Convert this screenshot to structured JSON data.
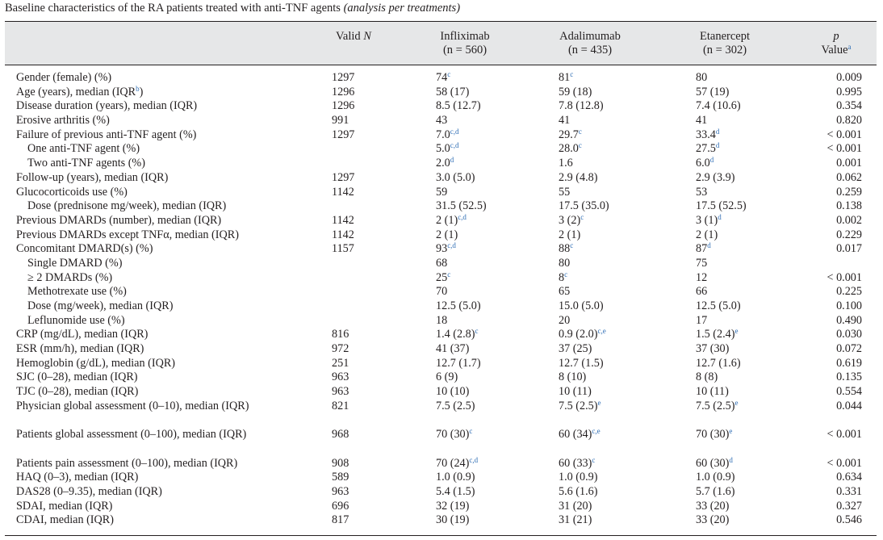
{
  "caption": {
    "text": "Baseline characteristics of the RA patients treated with anti-TNF agents ",
    "italic": "(analysis per treatments)"
  },
  "header": {
    "valid_n_a": "Valid ",
    "valid_n_b": "N",
    "infliximab": "Infliximab",
    "infliximab_n": "(n = 560)",
    "adalimumab": "Adalimumab",
    "adalimumab_n": "(n = 435)",
    "etanercept": "Etanercept",
    "etanercept_n": "(n = 302)",
    "p": "p",
    "p_value": "Value",
    "p_value_sup": "a"
  },
  "rows": [
    {
      "label": "Gender (female) (%)",
      "n": "1297",
      "inf": "74",
      "inf_sup": "c",
      "ada": "81",
      "ada_sup": "c",
      "eta": "80",
      "p": "0.009"
    },
    {
      "label": "Age (years), median (IQR",
      "label_sup": "b",
      "label_end": ")",
      "n": "1296",
      "inf": "58 (17)",
      "ada": "59 (18)",
      "eta": "57 (19)",
      "p": "0.995"
    },
    {
      "label": "Disease duration (years), median (IQR)",
      "n": "1296",
      "inf": "8.5 (12.7)",
      "ada": "7.8 (12.8)",
      "eta": "7.4 (10.6)",
      "p": "0.354"
    },
    {
      "label": "Erosive arthritis (%)",
      "n": "991",
      "inf": "43",
      "ada": "41",
      "eta": "41",
      "p": "0.820"
    },
    {
      "label": "Failure of previous anti-TNF agent (%)",
      "n": "1297",
      "inf": "7.0",
      "inf_sup": "c,d",
      "ada": "29.7",
      "ada_sup": "c",
      "eta": "33.4",
      "eta_sup": "d",
      "p": "< 0.001"
    },
    {
      "label": "One anti-TNF agent (%)",
      "indent": true,
      "inf": "5.0",
      "inf_sup": "c,d",
      "ada": "28.0",
      "ada_sup": "c",
      "eta": "27.5",
      "eta_sup": "d",
      "p": "< 0.001"
    },
    {
      "label": "Two anti-TNF agents (%)",
      "indent": true,
      "inf": "2.0",
      "inf_sup": "d",
      "ada": "1.6",
      "eta": "6.0",
      "eta_sup": "d",
      "p": "0.001"
    },
    {
      "label": "Follow-up (years), median (IQR)",
      "n": "1297",
      "inf": "3.0 (5.0)",
      "ada": "2.9 (4.8)",
      "eta": "2.9 (3.9)",
      "p": "0.062"
    },
    {
      "label": "Glucocorticoids use (%)",
      "n": "1142",
      "inf": "59",
      "ada": "55",
      "eta": "53",
      "p": "0.259"
    },
    {
      "label": "Dose (prednisone mg/week), median (IQR)",
      "indent": true,
      "inf": "31.5 (52.5)",
      "ada": "17.5 (35.0)",
      "eta": "17.5 (52.5)",
      "p": "0.138"
    },
    {
      "label": "Previous DMARDs (number), median (IQR)",
      "n": "1142",
      "inf": "2 (1)",
      "inf_sup": "c,d",
      "ada": "3 (2)",
      "ada_sup": "c",
      "eta": "3 (1)",
      "eta_sup": "d",
      "p": "0.002"
    },
    {
      "label": "Previous DMARDs except TNFα, median (IQR)",
      "n": "1142",
      "inf": "2 (1)",
      "ada": "2 (1)",
      "eta": "2 (1)",
      "p": "0.229"
    },
    {
      "label": "Concomitant DMARD(s) (%)",
      "n": "1157",
      "inf": "93",
      "inf_sup": "c,d",
      "ada": "88",
      "ada_sup": "c",
      "eta": "87",
      "eta_sup": "d",
      "p": "0.017"
    },
    {
      "label": "Single DMARD (%)",
      "indent": true,
      "inf": "68",
      "ada": "80",
      "eta": "75"
    },
    {
      "label": "≥ 2 DMARDs (%)",
      "indent": true,
      "inf": "25",
      "inf_sup": "c",
      "ada": "8",
      "ada_sup": "c",
      "eta": "12",
      "p": "< 0.001"
    },
    {
      "label": "Methotrexate use (%)",
      "indent": true,
      "inf": "70",
      "ada": "65",
      "eta": "66",
      "p": "0.225"
    },
    {
      "label": "Dose (mg/week), median (IQR)",
      "indent": true,
      "inf": "12.5 (5.0)",
      "ada": "15.0 (5.0)",
      "eta": "12.5 (5.0)",
      "p": "0.100"
    },
    {
      "label": "Leflunomide use (%)",
      "indent": true,
      "inf": "18",
      "ada": "20",
      "eta": "17",
      "p": "0.490"
    },
    {
      "label": "CRP (mg/dL), median (IQR)",
      "n": "816",
      "inf": "1.4 (2.8)",
      "inf_sup": "c",
      "ada": "0.9 (2.0)",
      "ada_sup": "c,e",
      "eta": "1.5 (2.4)",
      "eta_sup": "e",
      "p": "0.030"
    },
    {
      "label": "ESR (mm/h), median (IQR)",
      "n": "972",
      "inf": "41 (37)",
      "ada": "37 (25)",
      "eta": "37 (30)",
      "p": "0.072"
    },
    {
      "label": "Hemoglobin (g/dL), median (IQR)",
      "n": "251",
      "inf": "12.7 (1.7)",
      "ada": "12.7 (1.5)",
      "eta": "12.7 (1.6)",
      "p": "0.619"
    },
    {
      "label": "SJC (0–28), median (IQR)",
      "n": "963",
      "inf": "6 (9)",
      "ada": "8 (10)",
      "eta": "8 (8)",
      "p": "0.135"
    },
    {
      "label": "TJC (0–28), median (IQR)",
      "n": "963",
      "inf": "10 (10)",
      "ada": "10 (11)",
      "eta": "10 (11)",
      "p": "0.554"
    },
    {
      "label": "Physician global assessment (0–10), median (IQR)",
      "tall": true,
      "n": "821",
      "inf": "7.5 (2.5)",
      "ada": "7.5 (2.5)",
      "ada_sup": "e",
      "eta": "7.5 (2.5)",
      "eta_sup": "e",
      "p": "0.044"
    },
    {
      "label": "Patients global assessment (0–100), median (IQR)",
      "tall": true,
      "n": "968",
      "inf": "70 (30)",
      "inf_sup": "c",
      "ada": "60 (34)",
      "ada_sup": "c,e",
      "eta": "70 (30)",
      "eta_sup": "e",
      "p": "< 0.001"
    },
    {
      "label": "Patients pain assessment (0–100), median (IQR)",
      "n": "908",
      "inf": "70 (24)",
      "inf_sup": "c,d",
      "ada": "60 (33)",
      "ada_sup": "c",
      "eta": "60 (30)",
      "eta_sup": "d",
      "p": "< 0.001"
    },
    {
      "label": "HAQ (0–3), median (IQR)",
      "n": "589",
      "inf": "1.0 (0.9)",
      "ada": "1.0 (0.9)",
      "eta": "1.0 (0.9)",
      "p": "0.634"
    },
    {
      "label": "DAS28 (0–9.35), median (IQR)",
      "n": "963",
      "inf": "5.4 (1.5)",
      "ada": "5.6 (1.6)",
      "eta": "5.7 (1.6)",
      "p": "0.331"
    },
    {
      "label": "SDAI, median (IQR)",
      "n": "696",
      "inf": "32 (19)",
      "ada": "31 (20)",
      "eta": "33 (20)",
      "p": "0.327"
    },
    {
      "label": "CDAI, median (IQR)",
      "n": "817",
      "inf": "30 (19)",
      "ada": "31 (21)",
      "eta": "33 (20)",
      "p": "0.546"
    }
  ]
}
